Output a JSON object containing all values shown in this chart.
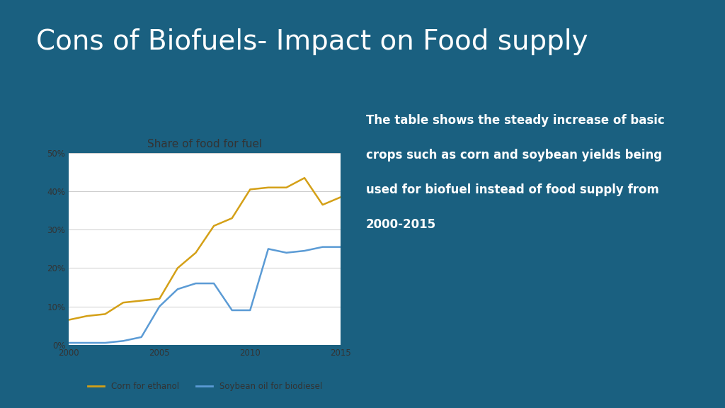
{
  "title": "Cons of Biofuels- Impact on Food supply",
  "title_color": "#ffffff",
  "title_fontsize": 28,
  "background_color": "#1a6080",
  "underline_color": "#3ab4d8",
  "chart_title": "Share of food for fuel",
  "description_lines": [
    "The table shows the steady increase of basic",
    "crops such as corn and soybean yields being",
    "used for biofuel instead of food supply from",
    "2000-2015"
  ],
  "corn_years": [
    2000,
    2001,
    2002,
    2003,
    2004,
    2005,
    2006,
    2007,
    2008,
    2009,
    2010,
    2011,
    2012,
    2013,
    2014,
    2015
  ],
  "corn_values": [
    6.5,
    7.5,
    8.0,
    11.0,
    11.5,
    12.0,
    20.0,
    24.0,
    31.0,
    33.0,
    40.5,
    41.0,
    41.0,
    43.5,
    36.5,
    38.5
  ],
  "soy_years": [
    2000,
    2001,
    2002,
    2003,
    2004,
    2005,
    2006,
    2007,
    2008,
    2009,
    2010,
    2011,
    2012,
    2013,
    2014,
    2015
  ],
  "soy_values": [
    0.5,
    0.5,
    0.5,
    1.0,
    2.0,
    10.0,
    14.5,
    16.0,
    16.0,
    9.0,
    9.0,
    25.0,
    24.0,
    24.5,
    25.5,
    25.5
  ],
  "corn_color": "#d4a017",
  "soy_color": "#5b9bd5",
  "ylim": [
    0,
    50
  ],
  "yticks": [
    0,
    10,
    20,
    30,
    40,
    50
  ],
  "ytick_labels": [
    "0%",
    "10%",
    "20%",
    "30%",
    "40%",
    "50%"
  ],
  "xticks": [
    2000,
    2005,
    2010,
    2015
  ],
  "chart_bg": "#ffffff",
  "legend_corn": "Corn for ethanol",
  "legend_soy": "Soybean oil for biodiesel"
}
